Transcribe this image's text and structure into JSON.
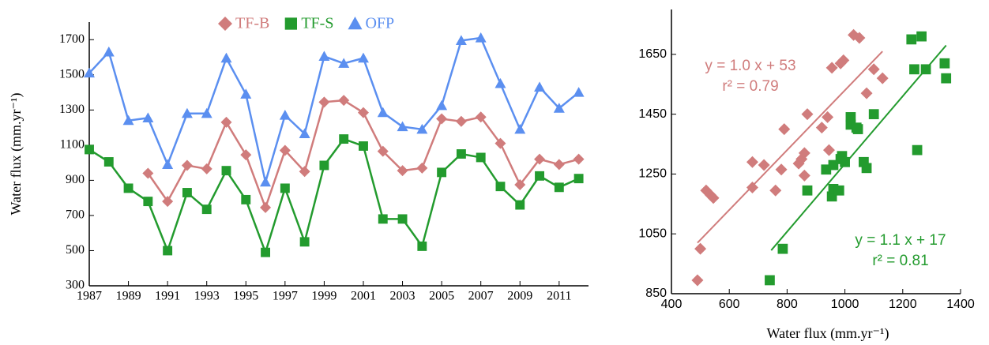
{
  "chart_data": [
    {
      "type": "line",
      "ylabel": "Water flux (mm.yr⁻¹)",
      "x": [
        1987,
        1988,
        1989,
        1990,
        1991,
        1992,
        1993,
        1994,
        1995,
        1996,
        1997,
        1998,
        1999,
        2000,
        2001,
        2002,
        2003,
        2004,
        2005,
        2006,
        2007,
        2008,
        2009,
        2010,
        2011,
        2012
      ],
      "xlim": [
        1987,
        2012.5
      ],
      "xticks": [
        1987,
        1989,
        1991,
        1993,
        1995,
        1997,
        1999,
        2001,
        2003,
        2005,
        2007,
        2009,
        2011
      ],
      "ylim": [
        300,
        1800
      ],
      "yticks": [
        300,
        500,
        700,
        900,
        1100,
        1300,
        1500,
        1700
      ],
      "series": [
        {
          "name": "TF-B",
          "color": "#d07c7c",
          "marker": "diamond",
          "values": [
            null,
            null,
            null,
            940,
            780,
            985,
            965,
            1230,
            1045,
            745,
            1070,
            950,
            1345,
            1355,
            1285,
            1065,
            955,
            970,
            1250,
            1235,
            1260,
            1110,
            875,
            1020,
            990,
            1020
          ]
        },
        {
          "name": "TF-S",
          "color": "#239b2e",
          "marker": "square",
          "values": [
            1075,
            1005,
            855,
            780,
            500,
            830,
            735,
            955,
            790,
            490,
            855,
            550,
            985,
            1135,
            1095,
            680,
            680,
            525,
            945,
            1050,
            1030,
            865,
            760,
            925,
            860,
            910
          ]
        },
        {
          "name": "OFP",
          "color": "#5b8ff0",
          "marker": "triangle",
          "values": [
            1510,
            1630,
            1240,
            1255,
            990,
            1280,
            1280,
            1595,
            1390,
            890,
            1270,
            1165,
            1605,
            1565,
            1595,
            1285,
            1205,
            1190,
            1325,
            1695,
            1710,
            1450,
            1190,
            1430,
            1310,
            1400
          ]
        }
      ]
    },
    {
      "type": "scatter",
      "xlabel": "Water flux (mm.yr⁻¹)",
      "xlim": [
        400,
        1400
      ],
      "xticks": [
        400,
        600,
        800,
        1000,
        1200,
        1400
      ],
      "ylim": [
        850,
        1800
      ],
      "yticks": [
        850,
        1050,
        1250,
        1450,
        1650
      ],
      "series": [
        {
          "color": "#d07c7c",
          "marker": "diamond",
          "x": [
            490,
            500,
            520,
            535,
            545,
            680,
            680,
            720,
            760,
            780,
            790,
            840,
            850,
            860,
            860,
            870,
            920,
            940,
            945,
            955,
            985,
            995,
            1030,
            1050,
            1075,
            1100,
            1130
          ],
          "values": [
            895,
            1000,
            1195,
            1180,
            1170,
            1290,
            1205,
            1280,
            1195,
            1265,
            1400,
            1285,
            1300,
            1320,
            1245,
            1450,
            1405,
            1440,
            1330,
            1605,
            1620,
            1630,
            1715,
            1705,
            1520,
            1600,
            1570
          ],
          "fit": {
            "x": [
              490,
              1130
            ],
            "values": [
              1020,
              1660
            ]
          },
          "annotation": [
            "y = 1.0 x + 53",
            "r² = 0.79"
          ]
        },
        {
          "color": "#239b2e",
          "marker": "square",
          "x": [
            740,
            785,
            870,
            935,
            955,
            960,
            960,
            980,
            985,
            990,
            1000,
            1020,
            1020,
            1040,
            1045,
            1065,
            1075,
            1100,
            1230,
            1240,
            1250,
            1265,
            1280,
            1345,
            1350
          ],
          "values": [
            895,
            1000,
            1195,
            1265,
            1175,
            1200,
            1280,
            1195,
            1300,
            1310,
            1290,
            1440,
            1415,
            1405,
            1400,
            1290,
            1270,
            1450,
            1700,
            1600,
            1330,
            1710,
            1600,
            1620,
            1570
          ],
          "fit": {
            "x": [
              745,
              1350
            ],
            "values": [
              995,
              1680
            ]
          },
          "annotation": [
            "y = 1.1 x + 17",
            "r² = 0.81"
          ]
        }
      ]
    }
  ]
}
